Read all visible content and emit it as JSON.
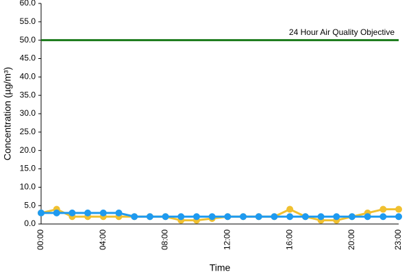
{
  "chart_data": {
    "type": "line",
    "y_label": "Concentration (µg/m³)",
    "x_label": "Time",
    "categories": [
      "00:00",
      null,
      null,
      null,
      "04:00",
      null,
      null,
      null,
      "08:00",
      null,
      null,
      null,
      "12:00",
      null,
      null,
      null,
      "16:00",
      null,
      null,
      null,
      "20:00",
      null,
      null,
      "23:00"
    ],
    "series": [
      {
        "color": "#f0c030",
        "values": [
          3,
          4,
          2,
          2,
          2,
          2,
          2,
          2,
          2,
          1,
          1,
          1.5,
          2,
          2,
          2,
          2,
          4,
          2,
          1,
          1,
          2,
          3,
          4,
          4
        ]
      },
      {
        "color": "#1e9af0",
        "values": [
          3,
          3,
          3,
          3,
          3,
          3,
          2,
          2,
          2,
          2,
          2,
          2,
          2,
          2,
          2,
          2,
          2,
          2,
          2,
          2,
          2,
          2,
          2,
          2
        ]
      }
    ],
    "objective": {
      "value": 50,
      "label": "24 Hour Air Quality Objective",
      "color": "#1a7a1a"
    },
    "ylim": [
      0,
      60
    ],
    "yticks": [
      {
        "value": 0,
        "label": "0.0"
      },
      {
        "value": 5,
        "label": "5.0"
      },
      {
        "value": 10,
        "label": "10.0"
      },
      {
        "value": 15,
        "label": "15.0"
      },
      {
        "value": 20,
        "label": "20.0"
      },
      {
        "value": 25,
        "label": "25.0"
      },
      {
        "value": 30,
        "label": "30.0"
      },
      {
        "value": 35,
        "label": "35.0"
      },
      {
        "value": 40,
        "label": "40.0"
      },
      {
        "value": 45,
        "label": "45.0"
      },
      {
        "value": 50,
        "label": "50.0"
      },
      {
        "value": 55,
        "label": "55.0"
      },
      {
        "value": 60,
        "label": "60.0"
      }
    ],
    "grid": false
  }
}
